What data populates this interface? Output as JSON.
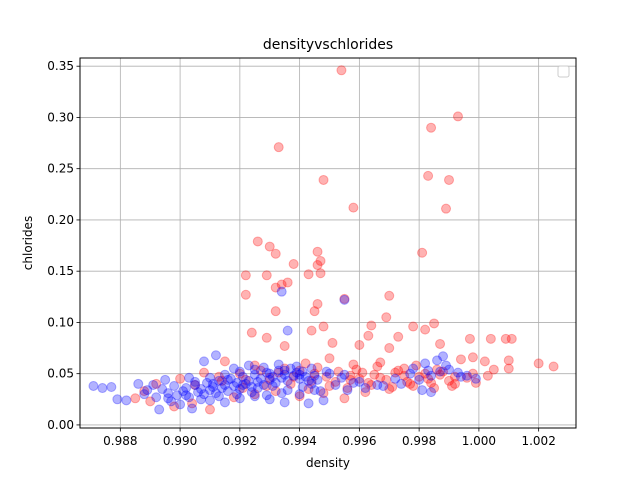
{
  "chart_data": {
    "type": "scatter",
    "title": "densityvschlorides",
    "xlabel": "density",
    "ylabel": "chlorides",
    "xlim": [
      0.98665,
      1.00325
    ],
    "ylim": [
      -0.003,
      0.358
    ],
    "xticks": [
      0.988,
      0.99,
      0.992,
      0.994,
      0.996,
      0.998,
      1.0,
      1.002
    ],
    "xtick_labels": [
      "0.988",
      "0.990",
      "0.992",
      "0.994",
      "0.996",
      "0.998",
      "1.000",
      "1.002"
    ],
    "yticks": [
      0.0,
      0.05,
      0.1,
      0.15,
      0.2,
      0.25,
      0.3,
      0.35
    ],
    "ytick_labels": [
      "0.00",
      "0.05",
      "0.10",
      "0.15",
      "0.20",
      "0.25",
      "0.30",
      "0.35"
    ],
    "grid": true,
    "legend": {
      "location": "upper right",
      "entries": []
    },
    "marker_alpha": 0.3,
    "series": [
      {
        "color": "#ff0000",
        "points": [
          [
            0.9954,
            0.346
          ],
          [
            0.9993,
            0.301
          ],
          [
            0.9984,
            0.29
          ],
          [
            0.9933,
            0.271
          ],
          [
            0.9983,
            0.243
          ],
          [
            0.999,
            0.239
          ],
          [
            0.9948,
            0.239
          ],
          [
            0.9958,
            0.212
          ],
          [
            0.9989,
            0.211
          ],
          [
            0.9981,
            0.168
          ],
          [
            0.9926,
            0.179
          ],
          [
            0.993,
            0.174
          ],
          [
            0.9932,
            0.167
          ],
          [
            0.9946,
            0.169
          ],
          [
            0.9938,
            0.157
          ],
          [
            0.9947,
            0.16
          ],
          [
            0.9946,
            0.156
          ],
          [
            0.9943,
            0.147
          ],
          [
            0.9922,
            0.146
          ],
          [
            0.9929,
            0.146
          ],
          [
            0.9947,
            0.148
          ],
          [
            0.9934,
            0.137
          ],
          [
            0.9932,
            0.134
          ],
          [
            0.9936,
            0.139
          ],
          [
            0.9922,
            0.127
          ],
          [
            0.9955,
            0.123
          ],
          [
            0.9946,
            0.118
          ],
          [
            0.997,
            0.126
          ],
          [
            0.9932,
            0.111
          ],
          [
            0.9945,
            0.111
          ],
          [
            0.9978,
            0.096
          ],
          [
            0.9985,
            0.099
          ],
          [
            0.9964,
            0.097
          ],
          [
            0.9969,
            0.105
          ],
          [
            0.9982,
            0.093
          ],
          [
            0.9997,
            0.084
          ],
          [
            1.0009,
            0.084
          ],
          [
            1.0004,
            0.084
          ],
          [
            1.0011,
            0.084
          ],
          [
            0.9987,
            0.079
          ],
          [
            0.9944,
            0.092
          ],
          [
            0.9948,
            0.096
          ],
          [
            0.9924,
            0.09
          ],
          [
            0.9929,
            0.085
          ],
          [
            0.9963,
            0.087
          ],
          [
            0.9973,
            0.086
          ],
          [
            0.996,
            0.078
          ],
          [
            0.997,
            0.075
          ],
          [
            0.9951,
            0.08
          ],
          [
            0.9935,
            0.077
          ],
          [
            0.9994,
            0.064
          ],
          [
            1.0002,
            0.062
          ],
          [
            0.9998,
            0.066
          ],
          [
            1.001,
            0.063
          ],
          [
            1.002,
            0.06
          ],
          [
            1.0025,
            0.057
          ],
          [
            1.001,
            0.055
          ],
          [
            1.0005,
            0.054
          ],
          [
            0.9998,
            0.05
          ],
          [
            0.9992,
            0.047
          ],
          [
            0.9988,
            0.052
          ],
          [
            0.9975,
            0.055
          ],
          [
            0.9967,
            0.061
          ],
          [
            0.9958,
            0.059
          ],
          [
            0.995,
            0.065
          ],
          [
            0.9942,
            0.06
          ],
          [
            0.9935,
            0.055
          ],
          [
            0.9925,
            0.058
          ],
          [
            0.9915,
            0.062
          ],
          [
            0.9908,
            0.051
          ],
          [
            0.99,
            0.045
          ],
          [
            0.9892,
            0.04
          ],
          [
            0.9888,
            0.033
          ],
          [
            0.9885,
            0.026
          ],
          [
            0.989,
            0.023
          ],
          [
            0.9898,
            0.018
          ],
          [
            0.9904,
            0.021
          ],
          [
            0.991,
            0.015
          ],
          [
            0.9918,
            0.027
          ],
          [
            0.9925,
            0.03
          ],
          [
            0.9932,
            0.033
          ],
          [
            0.994,
            0.028
          ],
          [
            0.9948,
            0.031
          ],
          [
            0.9955,
            0.026
          ],
          [
            0.9962,
            0.032
          ],
          [
            0.997,
            0.035
          ],
          [
            0.9978,
            0.038
          ],
          [
            0.9985,
            0.036
          ],
          [
            0.9992,
            0.04
          ],
          [
            0.9999,
            0.041
          ],
          [
            0.996,
            0.045
          ],
          [
            0.9965,
            0.049
          ],
          [
            0.9972,
            0.051
          ],
          [
            0.998,
            0.047
          ],
          [
            0.9987,
            0.049
          ],
          [
            0.9945,
            0.05
          ],
          [
            0.9938,
            0.047
          ],
          [
            0.993,
            0.046
          ],
          [
            0.9922,
            0.044
          ],
          [
            0.9914,
            0.043
          ],
          [
            0.9905,
            0.039
          ],
          [
            0.9952,
            0.042
          ],
          [
            0.9957,
            0.048
          ],
          [
            0.9963,
            0.041
          ],
          [
            0.9969,
            0.044
          ],
          [
            0.9976,
            0.042
          ],
          [
            0.9983,
            0.045
          ],
          [
            0.999,
            0.043
          ],
          [
            0.9996,
            0.046
          ],
          [
            1.0003,
            0.048
          ],
          [
            0.994,
            0.053
          ],
          [
            0.9946,
            0.056
          ],
          [
            0.9953,
            0.052
          ],
          [
            0.9959,
            0.054
          ],
          [
            0.9966,
            0.057
          ],
          [
            0.9973,
            0.053
          ],
          [
            0.9979,
            0.058
          ],
          [
            0.9986,
            0.054
          ],
          [
            0.9933,
            0.051
          ],
          [
            0.9927,
            0.053
          ],
          [
            0.992,
            0.05
          ],
          [
            0.9913,
            0.047
          ],
          [
            0.9944,
            0.043
          ],
          [
            0.995,
            0.038
          ],
          [
            0.9956,
            0.036
          ],
          [
            0.9964,
            0.039
          ],
          [
            0.9971,
            0.037
          ],
          [
            0.9977,
            0.04
          ],
          [
            0.9984,
            0.041
          ],
          [
            0.9991,
            0.038
          ],
          [
            0.9937,
            0.04
          ],
          [
            0.9929,
            0.038
          ],
          [
            0.9921,
            0.036
          ],
          [
            0.9943,
            0.035
          ],
          [
            0.9957,
            0.044
          ],
          [
            0.9967,
            0.046
          ],
          [
            0.9975,
            0.048
          ],
          [
            0.9982,
            0.05
          ],
          [
            0.9961,
            0.051
          ],
          [
            0.9949,
            0.047
          ]
        ]
      },
      {
        "color": "#0000ff",
        "points": [
          [
            0.9934,
            0.13
          ],
          [
            0.9955,
            0.122
          ],
          [
            0.9936,
            0.092
          ],
          [
            0.9871,
            0.038
          ],
          [
            0.9874,
            0.036
          ],
          [
            0.9877,
            0.037
          ],
          [
            0.9879,
            0.025
          ],
          [
            0.9882,
            0.024
          ],
          [
            0.9886,
            0.04
          ],
          [
            0.9889,
            0.034
          ],
          [
            0.9892,
            0.027
          ],
          [
            0.9894,
            0.035
          ],
          [
            0.9896,
            0.031
          ],
          [
            0.9898,
            0.038
          ],
          [
            0.9899,
            0.029
          ],
          [
            0.9901,
            0.033
          ],
          [
            0.9902,
            0.036
          ],
          [
            0.9903,
            0.027
          ],
          [
            0.9905,
            0.039
          ],
          [
            0.9906,
            0.032
          ],
          [
            0.9907,
            0.035
          ],
          [
            0.9908,
            0.03
          ],
          [
            0.9909,
            0.041
          ],
          [
            0.991,
            0.034
          ],
          [
            0.9911,
            0.037
          ],
          [
            0.9912,
            0.031
          ],
          [
            0.9913,
            0.043
          ],
          [
            0.9914,
            0.036
          ],
          [
            0.9915,
            0.039
          ],
          [
            0.9916,
            0.033
          ],
          [
            0.9917,
            0.045
          ],
          [
            0.9918,
            0.038
          ],
          [
            0.9919,
            0.041
          ],
          [
            0.992,
            0.035
          ],
          [
            0.9921,
            0.047
          ],
          [
            0.9922,
            0.04
          ],
          [
            0.9923,
            0.043
          ],
          [
            0.9924,
            0.037
          ],
          [
            0.9925,
            0.049
          ],
          [
            0.9926,
            0.042
          ],
          [
            0.9927,
            0.045
          ],
          [
            0.9928,
            0.039
          ],
          [
            0.9929,
            0.051
          ],
          [
            0.993,
            0.044
          ],
          [
            0.9931,
            0.047
          ],
          [
            0.9932,
            0.041
          ],
          [
            0.9933,
            0.053
          ],
          [
            0.9934,
            0.046
          ],
          [
            0.9935,
            0.049
          ],
          [
            0.9936,
            0.043
          ],
          [
            0.9937,
            0.055
          ],
          [
            0.9938,
            0.048
          ],
          [
            0.9939,
            0.051
          ],
          [
            0.994,
            0.045
          ],
          [
            0.9941,
            0.052
          ],
          [
            0.9942,
            0.047
          ],
          [
            0.9943,
            0.043
          ],
          [
            0.9944,
            0.04
          ],
          [
            0.9945,
            0.048
          ],
          [
            0.9946,
            0.044
          ],
          [
            0.9897,
            0.023
          ],
          [
            0.99,
            0.02
          ],
          [
            0.9893,
            0.015
          ],
          [
            0.9904,
            0.016
          ],
          [
            0.991,
            0.024
          ],
          [
            0.9915,
            0.022
          ],
          [
            0.992,
            0.026
          ],
          [
            0.9925,
            0.028
          ],
          [
            0.993,
            0.025
          ],
          [
            0.9935,
            0.022
          ],
          [
            0.9943,
            0.021
          ],
          [
            0.9948,
            0.024
          ],
          [
            0.9956,
            0.034
          ],
          [
            0.9962,
            0.036
          ],
          [
            0.9968,
            0.038
          ],
          [
            0.9974,
            0.04
          ],
          [
            0.998,
            0.044
          ],
          [
            0.9984,
            0.048
          ],
          [
            0.9987,
            0.052
          ],
          [
            0.999,
            0.054
          ],
          [
            0.9978,
            0.055
          ],
          [
            0.9982,
            0.06
          ],
          [
            0.9986,
            0.063
          ],
          [
            0.9988,
            0.067
          ],
          [
            0.9993,
            0.051
          ],
          [
            0.9996,
            0.048
          ],
          [
            0.9981,
            0.034
          ],
          [
            0.9984,
            0.032
          ],
          [
            0.9912,
            0.068
          ],
          [
            0.9908,
            0.062
          ],
          [
            0.9895,
            0.044
          ],
          [
            0.9891,
            0.039
          ],
          [
            0.9888,
            0.03
          ],
          [
            0.9903,
            0.046
          ],
          [
            0.9918,
            0.055
          ],
          [
            0.9923,
            0.058
          ],
          [
            0.9928,
            0.056
          ],
          [
            0.9933,
            0.059
          ],
          [
            0.9939,
            0.057
          ],
          [
            0.9944,
            0.055
          ],
          [
            0.995,
            0.05
          ],
          [
            0.9954,
            0.046
          ],
          [
            0.996,
            0.042
          ],
          [
            0.9966,
            0.039
          ],
          [
            0.9972,
            0.045
          ],
          [
            0.9977,
            0.05
          ],
          [
            0.9983,
            0.053
          ],
          [
            0.9989,
            0.058
          ],
          [
            0.9994,
            0.047
          ],
          [
            0.9999,
            0.045
          ],
          [
            0.9911,
            0.04
          ],
          [
            0.9916,
            0.044
          ],
          [
            0.9921,
            0.039
          ],
          [
            0.9926,
            0.036
          ],
          [
            0.9931,
            0.038
          ],
          [
            0.9936,
            0.034
          ],
          [
            0.9941,
            0.037
          ],
          [
            0.9947,
            0.033
          ],
          [
            0.9952,
            0.039
          ],
          [
            0.9958,
            0.041
          ],
          [
            0.9896,
            0.026
          ],
          [
            0.9902,
            0.029
          ],
          [
            0.9907,
            0.025
          ],
          [
            0.9913,
            0.028
          ],
          [
            0.9919,
            0.03
          ],
          [
            0.9924,
            0.032
          ],
          [
            0.9929,
            0.029
          ],
          [
            0.9934,
            0.031
          ],
          [
            0.994,
            0.03
          ],
          [
            0.9945,
            0.034
          ],
          [
            0.9905,
            0.042
          ],
          [
            0.991,
            0.046
          ],
          [
            0.9915,
            0.049
          ],
          [
            0.992,
            0.052
          ],
          [
            0.9925,
            0.054
          ],
          [
            0.993,
            0.05
          ],
          [
            0.9935,
            0.053
          ],
          [
            0.994,
            0.049
          ],
          [
            0.9949,
            0.052
          ],
          [
            0.9955,
            0.049
          ]
        ]
      }
    ]
  }
}
